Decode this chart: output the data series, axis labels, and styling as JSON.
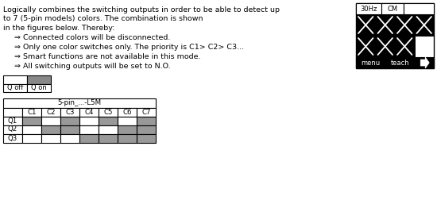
{
  "main_text_lines": [
    "Logically combines the switching outputs in order to be able to detect up",
    "to 7 (5-pin models) colors. The combination is shown",
    "in the figures below. Thereby:"
  ],
  "bullet_lines": [
    "⇒ Connected colors will be disconnected.",
    "⇒ Only one color switches only. The priority is C1> C2> C3...",
    "⇒ Smart functions are not available in this mode.",
    "⇒ All switching outputs will be set to N.O."
  ],
  "legend_labels": [
    "Q off",
    "Q on"
  ],
  "legend_colors": [
    "#ffffff",
    "#888888"
  ],
  "table_header": "5-pin_...-L5M",
  "table_col_labels": [
    "",
    "C1",
    "C2",
    "C3",
    "C4",
    "C5",
    "C6",
    "C7"
  ],
  "table_row_labels": [
    "Q1",
    "Q2",
    "Q3"
  ],
  "table_data": [
    [
      1,
      0,
      1,
      0,
      1,
      0,
      1
    ],
    [
      0,
      1,
      1,
      0,
      0,
      1,
      1
    ],
    [
      0,
      0,
      0,
      1,
      1,
      1,
      1
    ]
  ],
  "cell_on_color": "#999999",
  "cell_off_color": "#ffffff",
  "ui_panel": {
    "label_30hz": "30Hz",
    "label_cm": "CM",
    "menu_label": "menu",
    "teach_label": "teach"
  },
  "bg_color": "#ffffff",
  "text_color": "#000000",
  "font_size_main": 6.8,
  "font_size_table": 6.2
}
